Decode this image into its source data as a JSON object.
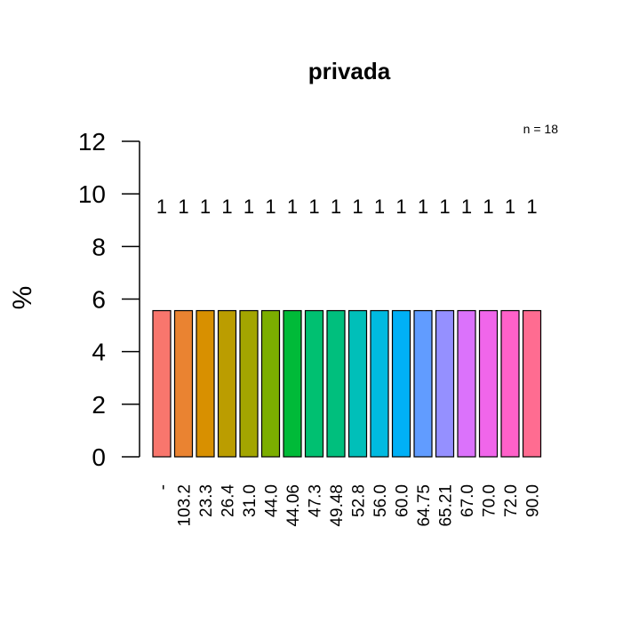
{
  "chart_data": {
    "type": "bar",
    "title": "privada",
    "xlabel": "",
    "ylabel": "%",
    "n_label": "n = 18",
    "categories": [
      "-",
      "103.2",
      "23.3",
      "26.4",
      "31.0",
      "44.0",
      "44.06",
      "47.3",
      "49.48",
      "52.8",
      "56.0",
      "60.0",
      "64.75",
      "65.21",
      "67.0",
      "70.0",
      "72.0",
      "90.0"
    ],
    "values": [
      5.56,
      5.56,
      5.56,
      5.56,
      5.56,
      5.56,
      5.56,
      5.56,
      5.56,
      5.56,
      5.56,
      5.56,
      5.56,
      5.56,
      5.56,
      5.56,
      5.56,
      5.56
    ],
    "counts": [
      "1",
      "1",
      "1",
      "1",
      "1",
      "1",
      "1",
      "1",
      "1",
      "1",
      "1",
      "1",
      "1",
      "1",
      "1",
      "1",
      "1",
      "1"
    ],
    "colors": [
      "#F8766D",
      "#EA8331",
      "#D89000",
      "#BB9D00",
      "#A3A500",
      "#7CAE00",
      "#00BA38",
      "#00C071",
      "#00BF7D",
      "#00BFB9",
      "#00BAE0",
      "#00B0F6",
      "#619CFF",
      "#9590FF",
      "#DB72FB",
      "#F066EA",
      "#FF61C9",
      "#FF6C91"
    ],
    "y_ticks": [
      "0",
      "2",
      "4",
      "6",
      "8",
      "10",
      "12"
    ],
    "ylim": [
      0,
      12
    ],
    "grid": false,
    "legend": "none"
  }
}
